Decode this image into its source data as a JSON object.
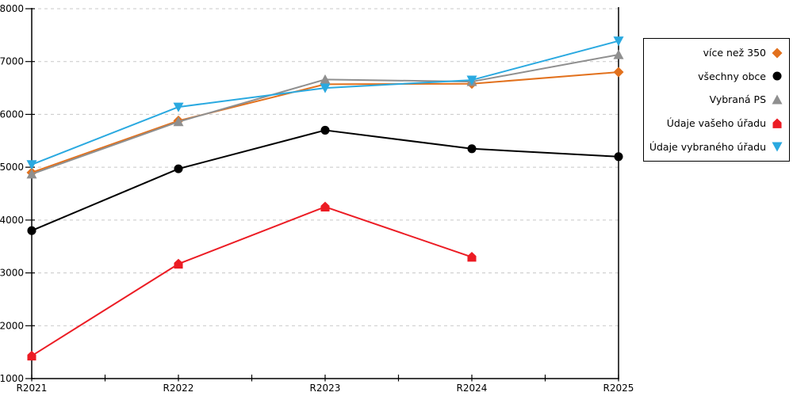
{
  "chart_data": {
    "type": "line",
    "title": "",
    "xlabel": "",
    "ylabel": "",
    "categories": [
      "R2021",
      "R2022",
      "R2023",
      "R2024",
      "R2025"
    ],
    "y_tick_labels": [
      "1000",
      "2000",
      "3000",
      "4000",
      "5000",
      "6000",
      "7000",
      "8000"
    ],
    "ylim": [
      1000,
      8000
    ],
    "ytick_step": 1000,
    "grid": "horizontal-dashed",
    "grid_color": "#C8C8C8",
    "axis_color": "#000000",
    "legend_position": "right",
    "series": [
      {
        "name": "více než 350",
        "color": "#E2711D",
        "marker": "diamond",
        "values": [
          4900,
          5880,
          6570,
          6580,
          6800
        ]
      },
      {
        "name": "všechny obce",
        "color": "#000000",
        "marker": "circle",
        "values": [
          3800,
          4970,
          5700,
          5350,
          5200
        ]
      },
      {
        "name": "Vybraná PS",
        "color": "#8F8F8F",
        "marker": "triangle-up",
        "values": [
          4870,
          5860,
          6660,
          6620,
          7130
        ]
      },
      {
        "name": "Údaje vašeho úřadu",
        "color": "#EC1C24",
        "marker": "house",
        "values": [
          1430,
          3170,
          4250,
          3300,
          null
        ]
      },
      {
        "name": "Údaje vybraného úřadu",
        "color": "#2AA9E0",
        "marker": "triangle-down",
        "values": [
          5050,
          6140,
          6500,
          6650,
          7390
        ]
      }
    ]
  }
}
